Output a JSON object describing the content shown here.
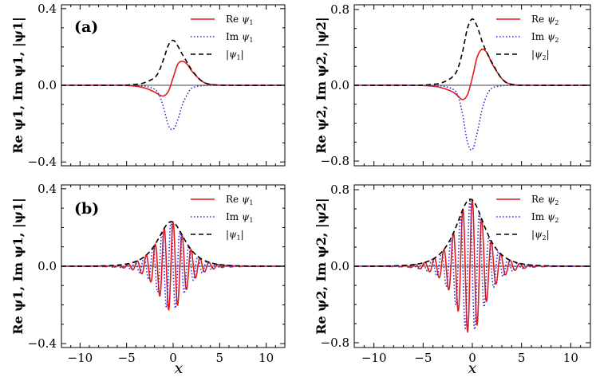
{
  "figure": {
    "xlabel": "x"
  },
  "chart_data": [
    {
      "id": "a1",
      "type": "line",
      "panel_label": "(a)",
      "xlabel": "",
      "ylabel": "Re ψ1, Im ψ1, |ψ1|",
      "xlim": [
        -12,
        12
      ],
      "ylim": [
        -0.42,
        0.42
      ],
      "yticks": [
        -0.4,
        0.0,
        0.4
      ],
      "ytick_labels": [
        "−0.4",
        "0.0",
        "0.4"
      ],
      "xticks": [
        -10,
        -5,
        0,
        5,
        10
      ],
      "xtick_labels": [],
      "legend": [
        "Re ψ1",
        "Im ψ1",
        "|ψ1|"
      ],
      "series": [
        {
          "name": "Re ψ1",
          "style": "re",
          "x": [
            -12,
            -6,
            -4,
            -3,
            -2,
            -1.5,
            -1,
            -0.5,
            0,
            0.5,
            1,
            1.5,
            2,
            3,
            4,
            6,
            12
          ],
          "y": [
            0,
            0,
            -0.005,
            -0.015,
            -0.035,
            -0.05,
            -0.055,
            -0.03,
            0.04,
            0.11,
            0.125,
            0.11,
            0.075,
            0.025,
            0.005,
            0,
            0
          ]
        },
        {
          "name": "Im ψ1",
          "style": "im",
          "x": [
            -12,
            -6,
            -4,
            -3,
            -2,
            -1.5,
            -1,
            -0.5,
            0,
            0.5,
            1,
            1.5,
            2,
            3,
            4,
            6,
            12
          ],
          "y": [
            0,
            0,
            -0.002,
            -0.005,
            -0.02,
            -0.05,
            -0.12,
            -0.21,
            -0.23,
            -0.18,
            -0.1,
            -0.05,
            -0.015,
            -0.003,
            0,
            0,
            0
          ]
        },
        {
          "name": "|ψ1|",
          "style": "abs",
          "x": [
            -12,
            -6,
            -4,
            -3,
            -2,
            -1.5,
            -1,
            -0.5,
            0,
            0.5,
            1,
            1.5,
            2,
            3,
            4,
            6,
            12
          ],
          "y": [
            0,
            0,
            0.005,
            0.015,
            0.04,
            0.075,
            0.14,
            0.21,
            0.235,
            0.205,
            0.16,
            0.12,
            0.08,
            0.025,
            0.005,
            0,
            0
          ]
        }
      ]
    },
    {
      "id": "a2",
      "type": "line",
      "xlabel": "",
      "ylabel": "Re ψ2, Im ψ2, |ψ2|",
      "xlim": [
        -12,
        12
      ],
      "ylim": [
        -0.85,
        0.85
      ],
      "yticks": [
        -0.8,
        0.0,
        0.8
      ],
      "ytick_labels": [
        "−0.8",
        "0.0",
        "0.8"
      ],
      "xticks": [
        -10,
        -5,
        0,
        5,
        10
      ],
      "xtick_labels": [],
      "legend": [
        "Re ψ2",
        "Im ψ2",
        "|ψ2|"
      ],
      "series": [
        {
          "name": "Re ψ2",
          "style": "re",
          "x": [
            -12,
            -6,
            -4,
            -3,
            -2,
            -1.5,
            -1,
            -0.5,
            0,
            0.5,
            1,
            1.5,
            2,
            3,
            4,
            6,
            12
          ],
          "y": [
            0,
            0,
            -0.01,
            -0.03,
            -0.07,
            -0.11,
            -0.15,
            -0.1,
            0.08,
            0.3,
            0.38,
            0.34,
            0.23,
            0.07,
            0.01,
            0,
            0
          ]
        },
        {
          "name": "Im ψ2",
          "style": "im",
          "x": [
            -12,
            -6,
            -4,
            -3,
            -2,
            -1.5,
            -1,
            -0.5,
            0,
            0.5,
            1,
            1.5,
            2,
            3,
            4,
            6,
            12
          ],
          "y": [
            0,
            0,
            -0.003,
            -0.01,
            -0.04,
            -0.1,
            -0.3,
            -0.6,
            -0.68,
            -0.5,
            -0.25,
            -0.1,
            -0.03,
            -0.005,
            0,
            0,
            0
          ]
        },
        {
          "name": "|ψ2|",
          "style": "abs",
          "x": [
            -12,
            -6,
            -4,
            -3,
            -2,
            -1.5,
            -1,
            -0.5,
            0,
            0.5,
            1,
            1.5,
            2,
            3,
            4,
            6,
            12
          ],
          "y": [
            0,
            0,
            0.01,
            0.03,
            0.09,
            0.17,
            0.35,
            0.6,
            0.7,
            0.62,
            0.46,
            0.34,
            0.24,
            0.07,
            0.01,
            0,
            0
          ]
        }
      ]
    },
    {
      "id": "b1",
      "type": "line",
      "panel_label": "(b)",
      "xlabel": "x",
      "ylabel": "Re ψ1, Im ψ1, |ψ1|",
      "xlim": [
        -12,
        12
      ],
      "ylim": [
        -0.42,
        0.42
      ],
      "yticks": [
        -0.4,
        0.0,
        0.4
      ],
      "ytick_labels": [
        "−0.4",
        "0.0",
        "0.4"
      ],
      "xticks": [
        -10,
        -5,
        0,
        5,
        10
      ],
      "xtick_labels": [
        "−10",
        "−5",
        "0",
        "5",
        "10"
      ],
      "legend": [
        "Re ψ1",
        "Im ψ1",
        "|ψ1|"
      ],
      "envelope": {
        "center": -0.2,
        "amplitude": 0.23,
        "width": 1.3
      },
      "oscillation": {
        "wavenumber": 6.5
      }
    },
    {
      "id": "b2",
      "type": "line",
      "xlabel": "x",
      "ylabel": "Re ψ2, Im ψ2, |ψ2|",
      "xlim": [
        -12,
        12
      ],
      "ylim": [
        -0.85,
        0.85
      ],
      "yticks": [
        -0.8,
        0.0,
        0.8
      ],
      "ytick_labels": [
        "−0.8",
        "0.0",
        "0.8"
      ],
      "xticks": [
        -10,
        -5,
        0,
        5,
        10
      ],
      "xtick_labels": [
        "−10",
        "−5",
        "0",
        "5",
        "10"
      ],
      "legend": [
        "Re ψ2",
        "Im ψ2",
        "|ψ2|"
      ],
      "envelope": {
        "center": -0.2,
        "amplitude": 0.7,
        "width": 1.3
      },
      "oscillation": {
        "wavenumber": 6.5
      }
    }
  ]
}
